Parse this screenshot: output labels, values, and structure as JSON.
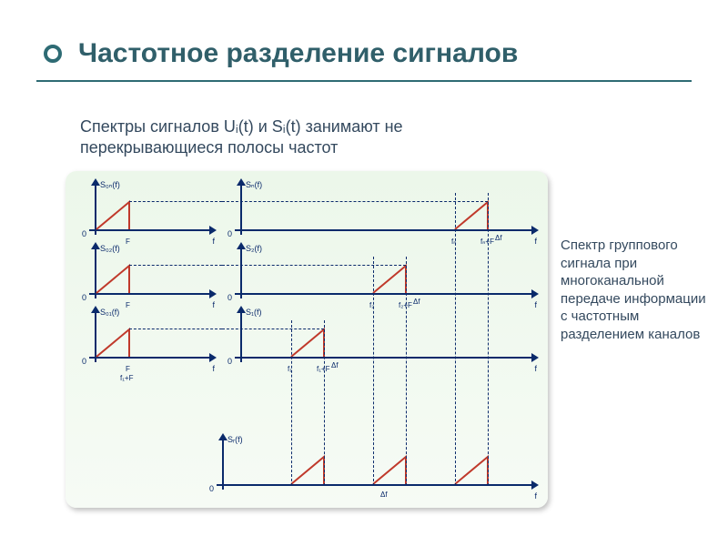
{
  "title": "Частотное разделение сигналов",
  "subtitle": "Спектры сигналов Uᵢ(t) и Sᵢ(t) занимают не перекрывающиеся полосы частот",
  "sidetext": "Спектр группового сигнала при многоканальной передаче информации с частотным разделением каналов",
  "colors": {
    "accent": "#2e6b74",
    "title": "#305f6a",
    "underline": "#2e6b74",
    "subtitle": "#34495e",
    "sidetext": "#34495e",
    "axis": "#0a2a6b",
    "signal": "#c0392b",
    "dash": "#0a2a6b"
  },
  "diagram": {
    "triangle_width": 36,
    "triangle_height": 30,
    "left": {
      "xlabel": "f",
      "ticks": [
        "F"
      ],
      "rows": [
        {
          "ylabel": "S₀ₙ(f)"
        },
        {
          "ylabel": "S₀₂(f)"
        },
        {
          "ylabel": "S₀₁(f)"
        }
      ]
    },
    "right": {
      "xlabel": "f",
      "rows": [
        {
          "ylabel": "Sₙ(f)",
          "pos": 256,
          "ticks": [
            "fₙ",
            "fₙ+F"
          ],
          "deltaf": "Δf"
        },
        {
          "ylabel": "S₂(f)",
          "pos": 166,
          "ticks": [
            "f₂",
            "f₂+F"
          ],
          "deltaf": "Δf"
        },
        {
          "ylabel": "S₁(f)",
          "pos": 76,
          "ticks": [
            "f₁",
            "f₁+F"
          ],
          "deltaf": "Δf",
          "extra_tick": "f₁+F"
        }
      ],
      "group": {
        "ylabel": "Sᵣ(f)",
        "positions": [
          76,
          166,
          256
        ],
        "deltaf_label": "Δf"
      }
    }
  }
}
